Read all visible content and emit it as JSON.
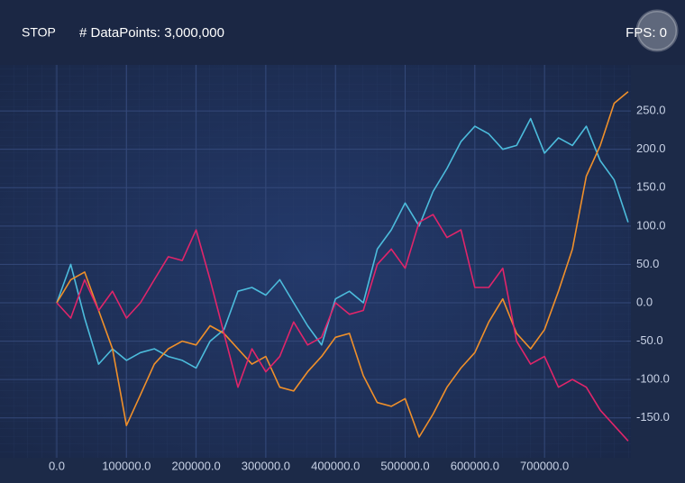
{
  "toolbar": {
    "button": "STOP",
    "datapoints": "# DataPoints: 3,000,000",
    "fps": "FPS: 0"
  },
  "chart_data": {
    "type": "line",
    "grid": true,
    "x": [
      0,
      20000,
      40000,
      60000,
      80000,
      100000,
      120000,
      140000,
      160000,
      180000,
      200000,
      220000,
      240000,
      260000,
      280000,
      300000,
      320000,
      340000,
      360000,
      380000,
      400000,
      420000,
      440000,
      460000,
      480000,
      500000,
      520000,
      540000,
      560000,
      580000,
      600000,
      620000,
      640000,
      660000,
      680000,
      700000,
      720000,
      740000,
      760000,
      780000,
      800000,
      820000
    ],
    "series": [
      {
        "color": "#4cbcdc",
        "values": [
          0,
          50,
          -20,
          -80,
          -60,
          -75,
          -65,
          -60,
          -70,
          -75,
          -85,
          -50,
          -35,
          15,
          20,
          10,
          30,
          0,
          -30,
          -55,
          5,
          15,
          0,
          70,
          95,
          130,
          100,
          145,
          175,
          210,
          230,
          220,
          200,
          205,
          240,
          195,
          215,
          205,
          230,
          185,
          160,
          105
        ]
      },
      {
        "color": "#f0902a",
        "values": [
          0,
          30,
          40,
          -10,
          -60,
          -160,
          -120,
          -80,
          -60,
          -50,
          -55,
          -30,
          -40,
          -60,
          -80,
          -70,
          -110,
          -115,
          -90,
          -70,
          -45,
          -40,
          -95,
          -130,
          -135,
          -125,
          -175,
          -145,
          -110,
          -85,
          -65,
          -25,
          5,
          -40,
          -60,
          -35,
          15,
          70,
          165,
          205,
          260,
          275
        ]
      },
      {
        "color": "#e0256a",
        "values": [
          0,
          -20,
          30,
          -10,
          15,
          -20,
          0,
          30,
          60,
          55,
          95,
          30,
          -40,
          -110,
          -60,
          -90,
          -70,
          -25,
          -55,
          -45,
          0,
          -15,
          -10,
          50,
          70,
          45,
          105,
          115,
          85,
          95,
          20,
          20,
          45,
          -50,
          -80,
          -70,
          -110,
          -100,
          -110,
          -140,
          -160,
          -180
        ]
      }
    ],
    "xlim": [
      -81500,
      824000
    ],
    "xticks": [
      {
        "value": 0,
        "label": "0.0"
      },
      {
        "value": 100000,
        "label": "100000.0"
      },
      {
        "value": 200000,
        "label": "200000.0"
      },
      {
        "value": 300000,
        "label": "300000.0"
      },
      {
        "value": 400000,
        "label": "400000.0"
      },
      {
        "value": 500000,
        "label": "500000.0"
      },
      {
        "value": 600000,
        "label": "600000.0"
      },
      {
        "value": 700000,
        "label": "700000.0"
      }
    ],
    "ylim": [
      -202,
      310
    ],
    "yticks": [
      {
        "value": -150,
        "label": "-150.0"
      },
      {
        "value": -100,
        "label": "-100.0"
      },
      {
        "value": -50,
        "label": "-50.0"
      },
      {
        "value": 0,
        "label": "0.0"
      },
      {
        "value": 50,
        "label": "50.0"
      },
      {
        "value": 100,
        "label": "100.0"
      },
      {
        "value": 150,
        "label": "150.0"
      },
      {
        "value": 200,
        "label": "200.0"
      },
      {
        "value": 250,
        "label": "250.0"
      }
    ]
  }
}
